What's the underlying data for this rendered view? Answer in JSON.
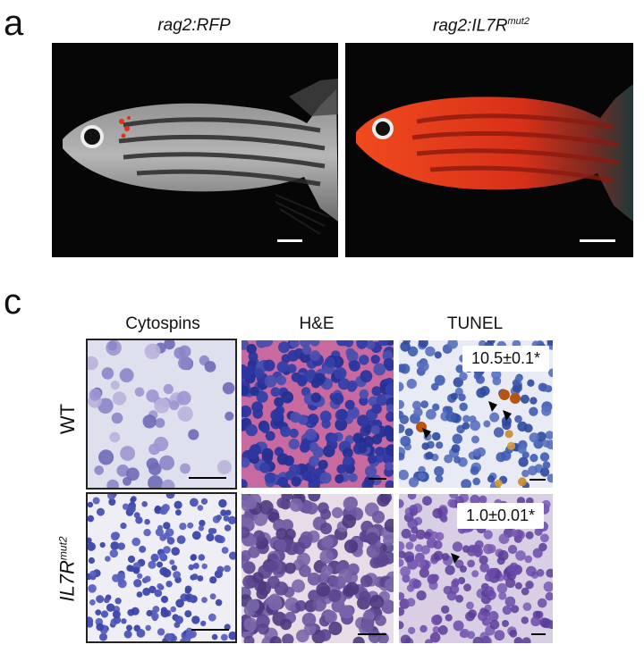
{
  "panel_a": {
    "letter": "a",
    "left_title_italic": "rag2:RFP",
    "right_title_base": "rag2:IL7R",
    "right_title_sup": "mut2"
  },
  "panel_c": {
    "letter": "c",
    "columns": [
      "Cytospins",
      "H&E",
      "TUNEL"
    ],
    "rows": [
      {
        "label_base": "WT",
        "label_sup": "",
        "tunel_stat": "10.5±0.1*"
      },
      {
        "label_base": "IL7R",
        "label_sup": "mut2",
        "tunel_stat": "1.0±0.01*"
      }
    ]
  },
  "colors": {
    "fluor_red": "#e2331a",
    "hematoxylin": "#3b47a8",
    "eosin": "#c86aa0",
    "background": "#ffffff"
  }
}
